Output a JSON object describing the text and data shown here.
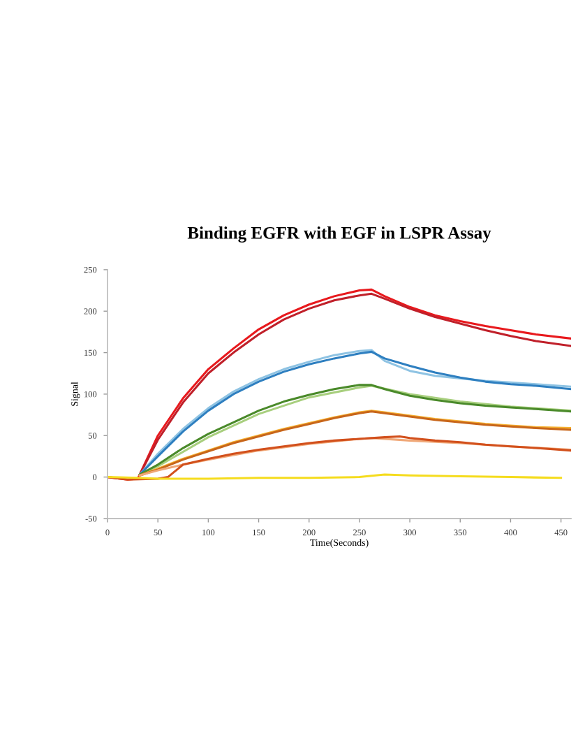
{
  "chart_data": {
    "type": "line",
    "title": "Binding EGFR with EGF in LSPR Assay",
    "xlabel": "Time(Seconds)",
    "ylabel": "Signal",
    "xlim": [
      0,
      460
    ],
    "xticks": [
      0,
      50,
      100,
      150,
      200,
      250,
      300,
      350,
      400,
      450
    ],
    "ylim": [
      -50,
      250
    ],
    "yticks": [
      -50,
      0,
      50,
      100,
      150,
      200,
      250
    ],
    "grid": false,
    "legend": false,
    "marker": "none",
    "line_style": "solid",
    "series": [
      {
        "color": "#e8191d",
        "x": [
          0,
          20,
          30,
          32,
          50,
          75,
          100,
          125,
          150,
          175,
          200,
          225,
          250,
          262,
          275,
          300,
          325,
          350,
          375,
          400,
          425,
          460
        ],
        "values": [
          0,
          -3,
          -2,
          3,
          50,
          95,
          130,
          155,
          178,
          195,
          208,
          218,
          225,
          226,
          218,
          205,
          195,
          188,
          182,
          177,
          172,
          167
        ]
      },
      {
        "color": "#c0202a",
        "x": [
          32,
          50,
          75,
          100,
          125,
          150,
          175,
          200,
          225,
          250,
          262,
          275,
          300,
          325,
          350,
          375,
          400,
          425,
          460
        ],
        "values": [
          3,
          45,
          90,
          125,
          150,
          172,
          190,
          203,
          213,
          219,
          221,
          215,
          203,
          193,
          185,
          177,
          170,
          164,
          158
        ]
      },
      {
        "color": "#8ec3e3",
        "x": [
          32,
          50,
          75,
          100,
          125,
          150,
          175,
          200,
          225,
          250,
          262,
          275,
          300,
          325,
          350,
          375,
          400,
          425,
          460
        ],
        "values": [
          3,
          28,
          58,
          83,
          103,
          118,
          130,
          139,
          147,
          152,
          153,
          140,
          128,
          122,
          119,
          116,
          114,
          112,
          109
        ]
      },
      {
        "color": "#2e7fc0",
        "x": [
          32,
          50,
          75,
          100,
          125,
          150,
          175,
          200,
          225,
          250,
          262,
          275,
          300,
          325,
          350,
          375,
          400,
          425,
          460
        ],
        "values": [
          3,
          25,
          55,
          80,
          100,
          115,
          127,
          136,
          143,
          149,
          151,
          143,
          134,
          126,
          120,
          115,
          112,
          110,
          106
        ]
      },
      {
        "color": "#a8cf7e",
        "x": [
          32,
          50,
          100,
          150,
          200,
          250,
          262,
          300,
          350,
          400,
          460
        ],
        "values": [
          3,
          13,
          48,
          76,
          96,
          108,
          110,
          100,
          91,
          85,
          80
        ]
      },
      {
        "color": "#4a8a2a",
        "x": [
          32,
          50,
          75,
          100,
          125,
          150,
          175,
          200,
          225,
          250,
          262,
          275,
          300,
          325,
          350,
          375,
          400,
          425,
          460
        ],
        "values": [
          3,
          15,
          35,
          52,
          66,
          80,
          91,
          99,
          106,
          111,
          111,
          106,
          98,
          93,
          89,
          86,
          84,
          82,
          79
        ]
      },
      {
        "color": "#f5b030",
        "x": [
          32,
          50,
          75,
          100,
          125,
          150,
          175,
          200,
          225,
          250,
          262,
          275,
          300,
          325,
          350,
          375,
          400,
          425,
          460
        ],
        "values": [
          2,
          10,
          22,
          32,
          42,
          50,
          58,
          65,
          72,
          78,
          80,
          78,
          74,
          70,
          67,
          64,
          62,
          60,
          59
        ]
      },
      {
        "color": "#c8661a",
        "x": [
          32,
          50,
          75,
          100,
          125,
          150,
          175,
          200,
          225,
          250,
          262,
          275,
          300,
          325,
          350,
          375,
          400,
          425,
          460
        ],
        "values": [
          2,
          9,
          21,
          31,
          41,
          49,
          57,
          64,
          71,
          77,
          79,
          77,
          73,
          69,
          66,
          63,
          61,
          59,
          57
        ]
      },
      {
        "color": "#f0a878",
        "x": [
          32,
          50,
          75,
          100,
          150,
          200,
          250,
          262,
          300,
          350,
          400,
          460
        ],
        "values": [
          2,
          8,
          15,
          21,
          32,
          40,
          46,
          47,
          44,
          41,
          37,
          33
        ]
      },
      {
        "color": "#d2501c",
        "x": [
          0,
          20,
          50,
          60,
          65,
          75,
          100,
          125,
          150,
          175,
          200,
          225,
          250,
          275,
          290,
          300,
          325,
          350,
          375,
          400,
          425,
          460
        ],
        "values": [
          0,
          -3,
          -2,
          0,
          5,
          15,
          22,
          28,
          33,
          37,
          41,
          44,
          46,
          48,
          49,
          47,
          44,
          42,
          39,
          37,
          35,
          32
        ]
      },
      {
        "color": "#f5dc1e",
        "x": [
          0,
          30,
          50,
          100,
          150,
          200,
          250,
          275,
          300,
          350,
          400,
          450
        ],
        "values": [
          0,
          -1,
          -2,
          -2,
          -1,
          -1,
          0,
          3,
          2,
          1,
          0,
          -1
        ]
      }
    ]
  }
}
